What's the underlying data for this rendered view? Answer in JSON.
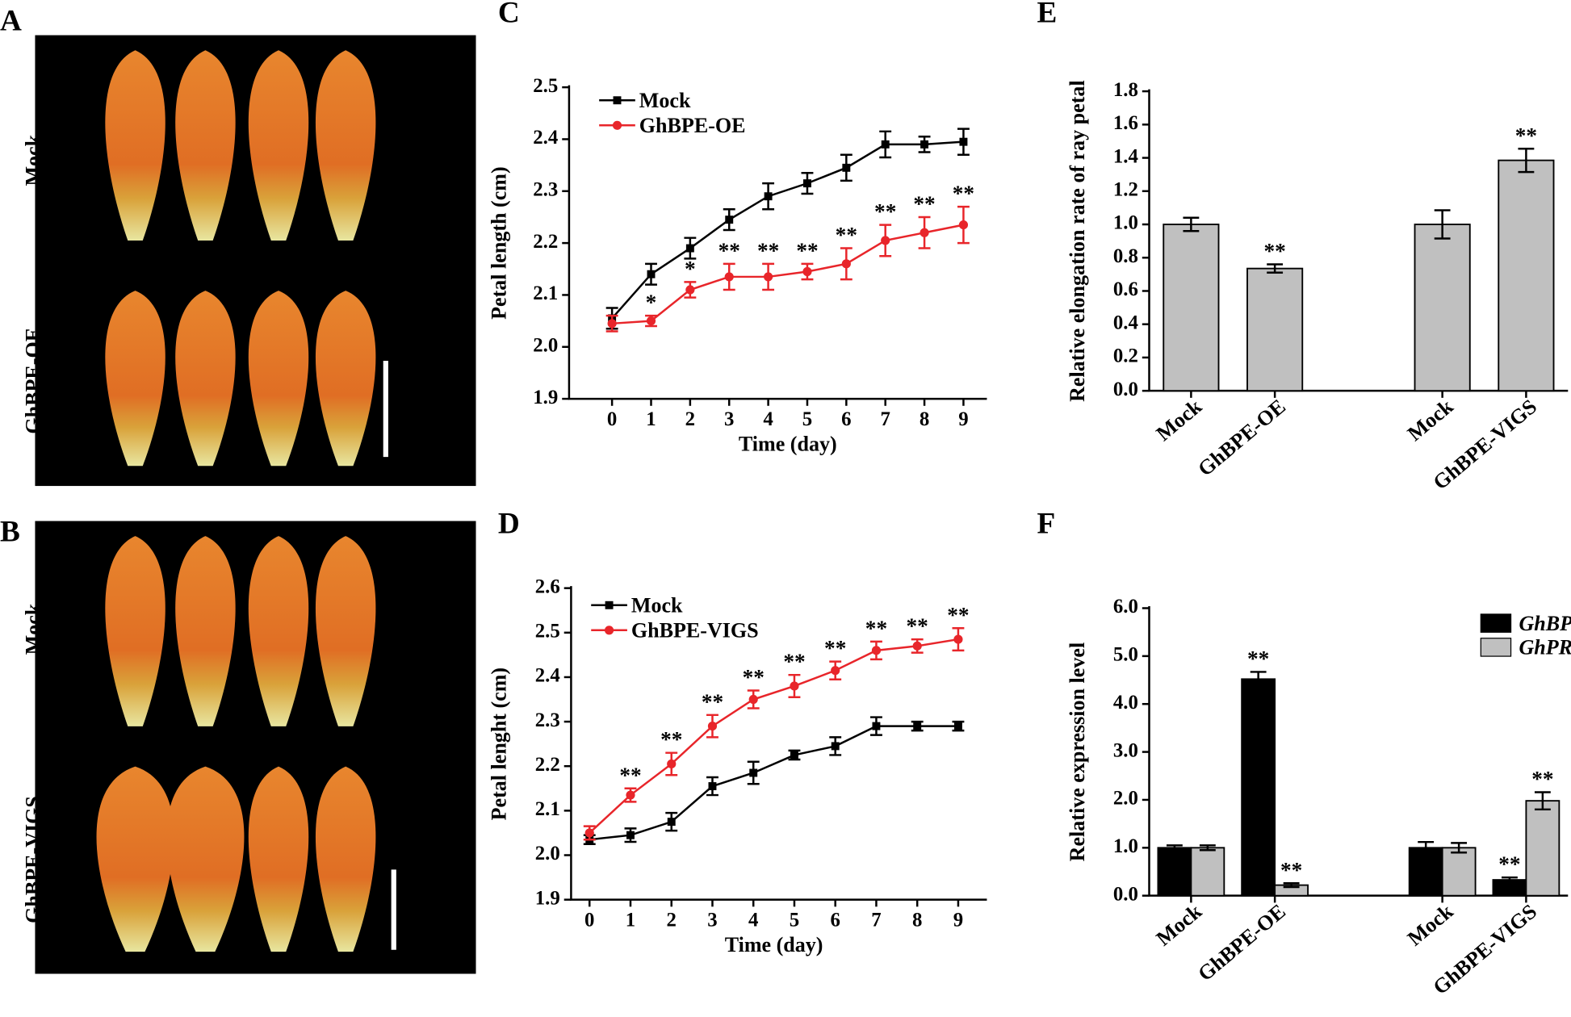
{
  "panels": {
    "A": {
      "label": "A",
      "rows": [
        "Mock",
        "GhBPE-OE"
      ]
    },
    "B": {
      "label": "B",
      "rows": [
        "Mock",
        "GhBPE-VIGS"
      ]
    }
  },
  "chart_data": [
    {
      "type": "line",
      "panel_label": "C",
      "x_label": "Time (day)",
      "y_label": "Petal length (cm)",
      "x": [
        0,
        1,
        2,
        3,
        4,
        5,
        6,
        7,
        8,
        9
      ],
      "xlim": [
        -1.1,
        9.6
      ],
      "xticks": [
        0,
        1,
        2,
        3,
        4,
        5,
        6,
        7,
        8,
        9
      ],
      "ylim": [
        1.9,
        2.5
      ],
      "yticks": [
        1.9,
        {
          "value": 2,
          "label": "2.0"
        },
        2.1,
        2.2,
        2.3,
        2.4,
        2.5
      ],
      "series": [
        {
          "name": "Mock",
          "color": "#000000",
          "marker": "square",
          "values": [
            2.055,
            2.14,
            2.19,
            2.245,
            2.29,
            2.315,
            2.345,
            2.39,
            2.39,
            2.395
          ],
          "errors": [
            0.02,
            0.02,
            0.02,
            0.02,
            0.025,
            0.02,
            0.025,
            0.025,
            0.015,
            0.025
          ],
          "annotations": [
            null,
            null,
            null,
            null,
            null,
            null,
            null,
            null,
            null,
            null
          ]
        },
        {
          "name": "GhBPE-OE",
          "color": "#e8252a",
          "marker": "circle",
          "values": [
            2.045,
            2.05,
            2.11,
            2.135,
            2.135,
            2.145,
            2.16,
            2.205,
            2.22,
            2.235
          ],
          "errors": [
            0.015,
            0.01,
            0.015,
            0.025,
            0.025,
            0.015,
            0.03,
            0.03,
            0.03,
            0.035
          ],
          "annotations": [
            null,
            "*",
            "*",
            "**",
            "**",
            "**",
            "**",
            "**",
            "**",
            "**"
          ]
        }
      ]
    },
    {
      "type": "line",
      "panel_label": "D",
      "x_label": "Time (day)",
      "y_label": "Petal lenght (cm)",
      "x": [
        0,
        1,
        2,
        3,
        4,
        5,
        6,
        7,
        8,
        9
      ],
      "xlim": [
        -0.45,
        9.7
      ],
      "xticks": [
        0,
        1,
        2,
        3,
        4,
        5,
        6,
        7,
        8,
        9
      ],
      "ylim": [
        1.9,
        2.6
      ],
      "yticks": [
        1.9,
        {
          "value": 2,
          "label": "2.0"
        },
        2.1,
        2.2,
        2.3,
        2.4,
        2.5,
        2.6
      ],
      "series": [
        {
          "name": "Mock",
          "color": "#000000",
          "marker": "square",
          "values": [
            2.035,
            2.045,
            2.075,
            2.155,
            2.185,
            2.225,
            2.245,
            2.29,
            2.29,
            2.29
          ],
          "errors": [
            0.01,
            0.015,
            0.02,
            0.02,
            0.025,
            0.01,
            0.02,
            0.02,
            0.01,
            0.01
          ],
          "annotations": [
            null,
            null,
            null,
            null,
            null,
            null,
            null,
            null,
            null,
            null
          ]
        },
        {
          "name": "GhBPE-VIGS",
          "color": "#e8252a",
          "marker": "circle",
          "values": [
            2.05,
            2.135,
            2.205,
            2.29,
            2.35,
            2.38,
            2.415,
            2.46,
            2.47,
            2.485
          ],
          "errors": [
            0.015,
            0.015,
            0.025,
            0.025,
            0.02,
            0.025,
            0.02,
            0.02,
            0.015,
            0.025
          ],
          "annotations": [
            null,
            "**",
            "**",
            "**",
            "**",
            "**",
            "**",
            "**",
            "**",
            "**"
          ]
        }
      ]
    },
    {
      "type": "bar",
      "panel_label": "E",
      "y_label": "Relative elongation rate of ray petal",
      "categories": [
        "Mock",
        "GhBPE-OE",
        "Mock",
        "GhBPE-VIGS"
      ],
      "ylim": [
        0,
        1.8
      ],
      "yticks": [
        {
          "value": 0,
          "label": "0.0"
        },
        0.2,
        0.4,
        0.6,
        0.8,
        {
          "value": 1,
          "label": "1.0"
        },
        1.2,
        1.4,
        1.6,
        1.8
      ],
      "series": [
        {
          "color": "#c0c0c0",
          "values": [
            1.0,
            0.735,
            1.0,
            1.385
          ],
          "errors": [
            0.04,
            0.025,
            0.085,
            0.07
          ],
          "annotations": [
            null,
            "**",
            null,
            "**"
          ]
        }
      ]
    },
    {
      "type": "bar",
      "panel_label": "F",
      "y_label": "Relative expression level",
      "categories": [
        "Mock",
        "GhBPE-OE",
        "Mock",
        "GhBPE-VIGS"
      ],
      "ylim": [
        0,
        6
      ],
      "yticks": [
        {
          "value": 0,
          "label": "0.0"
        },
        {
          "value": 1,
          "label": "1.0"
        },
        {
          "value": 2,
          "label": "2.0"
        },
        {
          "value": 3,
          "label": "3.0"
        },
        {
          "value": 4,
          "label": "4.0"
        },
        {
          "value": 5,
          "label": "5.0"
        },
        {
          "value": 6,
          "label": "6.0"
        }
      ],
      "series": [
        {
          "name": "GhBPE",
          "color": "#000000",
          "values": [
            1.0,
            4.52,
            1.0,
            0.33
          ],
          "errors": [
            0.05,
            0.15,
            0.12,
            0.05
          ],
          "annotations": [
            null,
            "**",
            null,
            "**"
          ]
        },
        {
          "name": "GhPRGL",
          "color": "#c0c0c0",
          "values": [
            1.0,
            0.22,
            1.0,
            1.98
          ],
          "errors": [
            0.05,
            0.04,
            0.1,
            0.18
          ],
          "annotations": [
            null,
            "**",
            null,
            "**"
          ]
        }
      ]
    }
  ]
}
